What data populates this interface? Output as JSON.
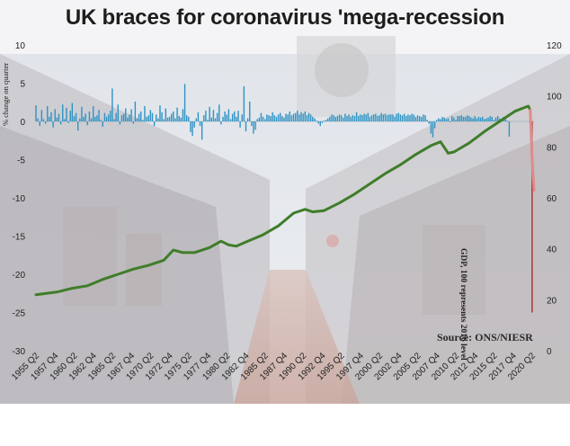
{
  "chart_data": {
    "type": "bar+line",
    "title": "UK braces for  coronavirus 'mega-recession",
    "source": "Source: ONS/NIESR",
    "left_axis": {
      "label": "% change on quarter",
      "range": [
        -30,
        10
      ],
      "ticks": [
        "10",
        "5",
        "0",
        "-5",
        "-10",
        "-15",
        "-20",
        "-25",
        "-30"
      ]
    },
    "right_axis": {
      "label": "GDP, 100 represents 2016 level",
      "range": [
        0,
        120
      ],
      "ticks": [
        "120",
        "100",
        "80",
        "60",
        "40",
        "20",
        "0"
      ]
    },
    "x_ticks": [
      "1955 Q2",
      "1957 Q4",
      "1960 Q2",
      "1962 Q4",
      "1965 Q2",
      "1967 Q4",
      "1970 Q2",
      "1972 Q4",
      "1975 Q2",
      "1977 Q4",
      "1980 Q2",
      "1982 Q4",
      "1985 Q2",
      "1987 Q4",
      "1990 Q2",
      "1992 Q4",
      "1995 Q2",
      "1997 Q4",
      "2000 Q2",
      "2002 Q4",
      "2005 Q2",
      "2007 Q4",
      "2010 Q2",
      "2012 Q4",
      "2015 Q2",
      "2017 Q4",
      "2020 Q2"
    ],
    "series": [
      {
        "name": "",
        "kind": "bar",
        "axis": "left",
        "color": "#2e93c4",
        "x_start": 1955.25,
        "step": 0.25,
        "values": [
          2.1,
          0.4,
          -0.6,
          1.5,
          0.3,
          -0.3,
          2.0,
          0.6,
          1.2,
          -0.8,
          1.6,
          0.5,
          1.0,
          -0.4,
          2.2,
          0.3,
          1.8,
          -0.2,
          1.4,
          2.4,
          0.7,
          1.1,
          -1.2,
          0.4,
          1.9,
          0.6,
          1.0,
          -0.5,
          1.3,
          0.4,
          2.0,
          0.6,
          0.8,
          1.5,
          0.2,
          -0.7,
          1.1,
          0.6,
          0.9,
          1.4,
          4.3,
          0.3,
          1.1,
          2.2,
          -0.4,
          0.8,
          1.0,
          1.7,
          0.5,
          0.9,
          1.6,
          -0.3,
          2.6,
          0.4,
          1.0,
          1.3,
          0.2,
          2.0,
          0.6,
          0.8,
          1.5,
          1.1,
          -0.6,
          0.9,
          0.4,
          2.1,
          1.2,
          0.3,
          1.7,
          0.5,
          0.6,
          1.0,
          1.3,
          0.4,
          1.8,
          0.7,
          0.5,
          1.6,
          4.9,
          0.8,
          0.6,
          -1.4,
          -1.9,
          -0.8,
          0.4,
          1.2,
          -0.6,
          -2.4,
          0.8,
          1.4,
          0.2,
          1.9,
          0.5,
          1.5,
          0.4,
          1.1,
          2.2,
          -0.4,
          0.6,
          1.3,
          0.9,
          1.6,
          0.3,
          1.0,
          1.3,
          0.6,
          1.4,
          -0.8,
          0.9,
          4.6,
          -1.3,
          0.4,
          2.6,
          -0.6,
          -1.6,
          -1.1,
          0.3,
          0.5,
          1.1,
          0.6,
          0.3,
          0.9,
          0.8,
          0.7,
          1.2,
          0.8,
          0.6,
          0.9,
          1.1,
          0.7,
          0.5,
          1.0,
          0.9,
          1.3,
          0.8,
          1.0,
          1.1,
          1.4,
          0.9,
          1.2,
          1.0,
          1.3,
          0.8,
          1.1,
          0.9,
          0.6,
          0.4,
          0.1,
          -0.3,
          -0.6,
          -0.2,
          0.1,
          0.2,
          0.4,
          0.6,
          0.9,
          0.8,
          0.6,
          0.7,
          0.9,
          0.8,
          0.5,
          1.0,
          0.7,
          0.9,
          0.6,
          0.8,
          0.7,
          1.2,
          0.7,
          0.9,
          0.8,
          1.0,
          0.9,
          1.1,
          0.6,
          0.8,
          0.9,
          1.0,
          0.7,
          0.8,
          1.1,
          0.9,
          1.0,
          0.8,
          0.9,
          0.9,
          0.9,
          0.6,
          1.0,
          1.1,
          0.9,
          0.8,
          1.0,
          0.7,
          0.9,
          0.8,
          1.0,
          0.9,
          0.6,
          0.8,
          0.7,
          0.6,
          0.9,
          0.8,
          0.2,
          -0.3,
          -1.6,
          -2.1,
          -0.9,
          0.2,
          0.4,
          0.3,
          0.6,
          0.5,
          0.3,
          0.4,
          -0.1,
          0.7,
          0.5,
          0.2,
          0.7,
          0.7,
          0.8,
          0.6,
          0.6,
          0.8,
          0.7,
          0.5,
          0.4,
          0.7,
          0.4,
          0.6,
          0.5,
          0.6,
          0.3,
          0.4,
          0.5,
          0.7,
          0.6,
          0.2,
          0.5,
          0.7,
          0.4,
          0.3,
          0.6,
          0.5,
          0.1,
          -2.0
        ]
      },
      {
        "name": "",
        "kind": "bar",
        "axis": "left",
        "color": "#b02a2a",
        "x_start": 2020.25,
        "step": 0.25,
        "values": [
          -25
        ]
      },
      {
        "name": "",
        "kind": "line",
        "axis": "right",
        "color": "#3f7d2a",
        "points": [
          [
            1955.25,
            22
          ],
          [
            1958,
            23
          ],
          [
            1960,
            24.5
          ],
          [
            1962,
            25.5
          ],
          [
            1964,
            28
          ],
          [
            1966,
            30
          ],
          [
            1968,
            32
          ],
          [
            1970,
            33.5
          ],
          [
            1972,
            35.5
          ],
          [
            1973.25,
            39.5
          ],
          [
            1974.5,
            38.5
          ],
          [
            1976,
            38.5
          ],
          [
            1978,
            40.5
          ],
          [
            1979.5,
            43
          ],
          [
            1980.5,
            41.5
          ],
          [
            1981.5,
            41
          ],
          [
            1983,
            43
          ],
          [
            1985,
            45.5
          ],
          [
            1987,
            49
          ],
          [
            1989,
            54
          ],
          [
            1990.5,
            55.5
          ],
          [
            1991.5,
            54.5
          ],
          [
            1993,
            55
          ],
          [
            1995,
            58
          ],
          [
            1997,
            61.5
          ],
          [
            1999,
            65.5
          ],
          [
            2001,
            69.5
          ],
          [
            2003,
            73
          ],
          [
            2005,
            77
          ],
          [
            2007,
            80.5
          ],
          [
            2008.25,
            82
          ],
          [
            2009.25,
            77.5
          ],
          [
            2010,
            78
          ],
          [
            2012,
            81.5
          ],
          [
            2014,
            86
          ],
          [
            2016,
            90
          ],
          [
            2018,
            94
          ],
          [
            2019.75,
            96
          ],
          [
            2020,
            94.5
          ],
          [
            2020.25,
            75
          ],
          [
            2020.5,
            63
          ]
        ]
      }
    ]
  }
}
